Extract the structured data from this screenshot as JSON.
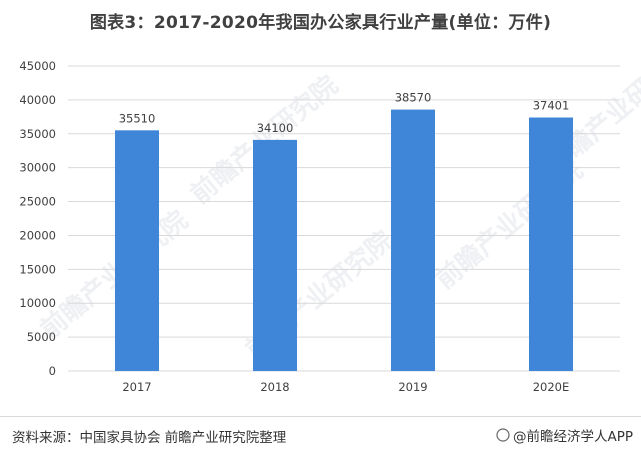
{
  "title": "图表3：2017-2020年我国办公家具行业产量(单位：万件)",
  "source": "资料来源：中国家具协会 前瞻产业研究院整理",
  "credit": "@前瞻经济学人APP",
  "watermark": "前瞻产业研究院",
  "chart_data": {
    "type": "bar",
    "categories": [
      "2017",
      "2018",
      "2019",
      "2020E"
    ],
    "values": [
      35510,
      34100,
      38570,
      37401
    ],
    "data_labels": [
      "35510",
      "34100",
      "38570",
      "37401"
    ],
    "ylim": [
      0,
      45000
    ],
    "yticks": [
      0,
      5000,
      10000,
      15000,
      20000,
      25000,
      30000,
      35000,
      40000,
      45000
    ],
    "ytick_labels": [
      "0",
      "5000",
      "10000",
      "15000",
      "20000",
      "25000",
      "30000",
      "35000",
      "40000",
      "45000"
    ],
    "grid": true,
    "bar_color": "#3f86d9",
    "grid_color": "#d9d9d9"
  }
}
